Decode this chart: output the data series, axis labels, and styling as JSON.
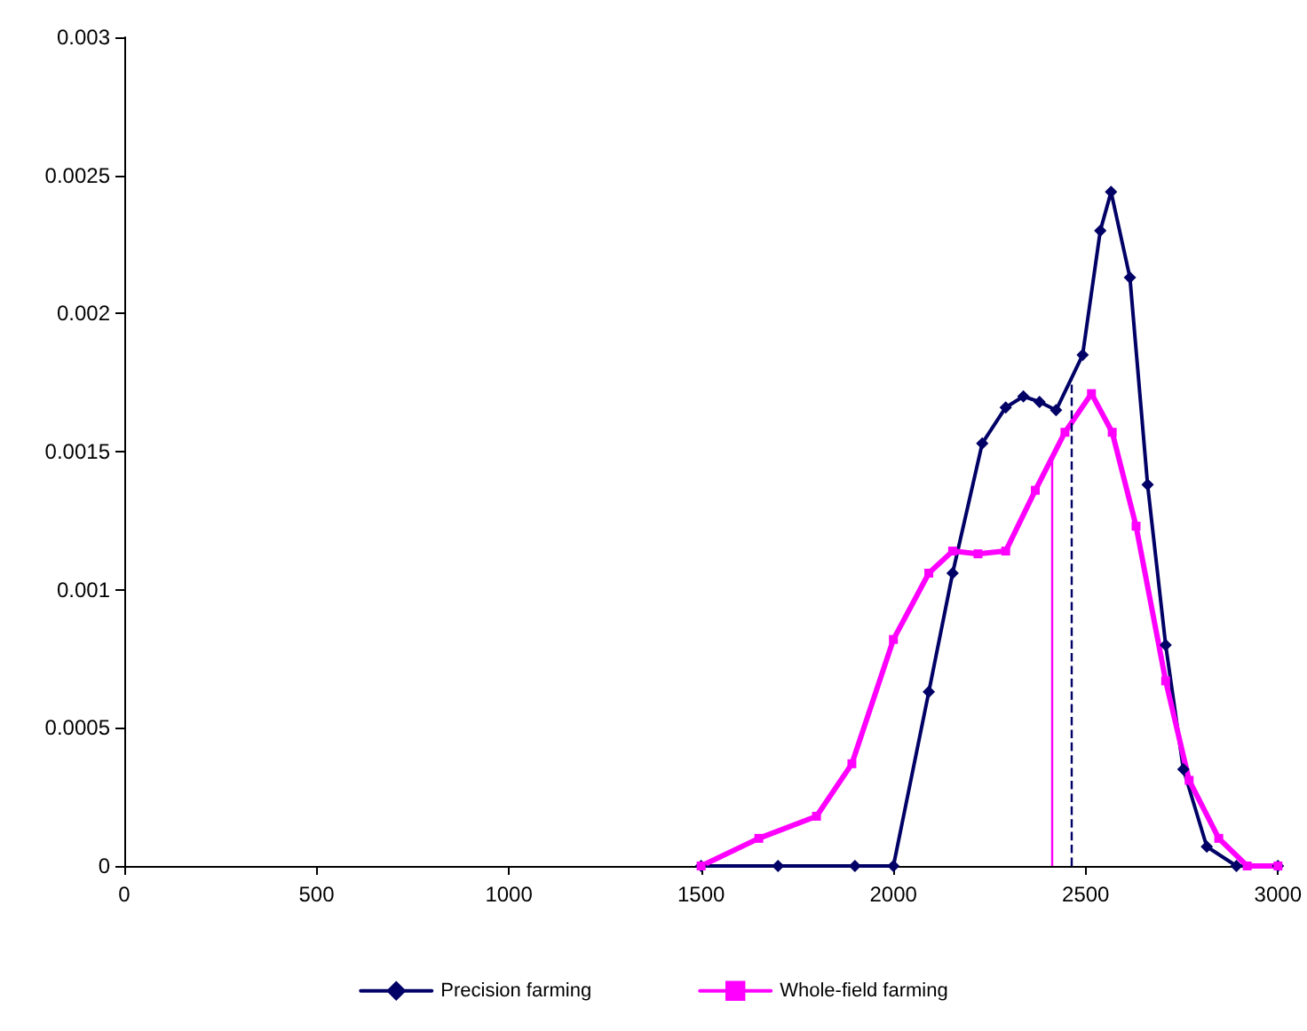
{
  "chart_data": {
    "type": "line",
    "x": [
      1500,
      1700,
      1900,
      2000,
      2092,
      2154,
      2231,
      2292,
      2338,
      2380,
      2423,
      2492,
      2538,
      2566,
      2615,
      2661,
      2708,
      2754,
      2815,
      2892,
      3000
    ],
    "series": [
      {
        "name": "Precision farming",
        "color": "#000066",
        "marker": "diamond",
        "values": [
          0,
          0,
          0,
          0,
          0.00063,
          0.00106,
          0.00153,
          0.00166,
          0.0017,
          0.00168,
          0.00165,
          0.00185,
          0.0023,
          0.00244,
          0.00213,
          0.00138,
          0.0008,
          0.00035,
          7e-05,
          0,
          0
        ]
      },
      {
        "name": "Whole-field farming",
        "color": "#ff00ff",
        "marker": "square",
        "x": [
          1500,
          1650,
          1800,
          1892,
          2000,
          2092,
          2154,
          2220,
          2292,
          2369,
          2446,
          2515,
          2569,
          2631,
          2708,
          2769,
          2846,
          2920,
          3000
        ],
        "values": [
          0,
          0.0001,
          0.00018,
          0.00037,
          0.00082,
          0.00106,
          0.00114,
          0.00113,
          0.00114,
          0.00136,
          0.00157,
          0.00171,
          0.00157,
          0.00123,
          0.00067,
          0.00031,
          0.0001,
          0,
          0
        ]
      }
    ],
    "ref_lines": [
      {
        "axis": "x",
        "value": 2461,
        "color": "#000066",
        "line_style": "dashed"
      },
      {
        "axis": "x",
        "value": 2411,
        "color": "#ff00ff",
        "line_style": "solid"
      }
    ],
    "xlim": [
      0,
      3000
    ],
    "xticks": [
      0,
      500,
      1000,
      1500,
      2000,
      2500,
      3000
    ],
    "ylim": [
      0,
      0.003
    ],
    "yticks": [
      0,
      0.0005,
      0.001,
      0.0015,
      0.002,
      0.0025,
      0.003
    ],
    "grid": false,
    "legend": "bottom",
    "line_style": "solid"
  }
}
